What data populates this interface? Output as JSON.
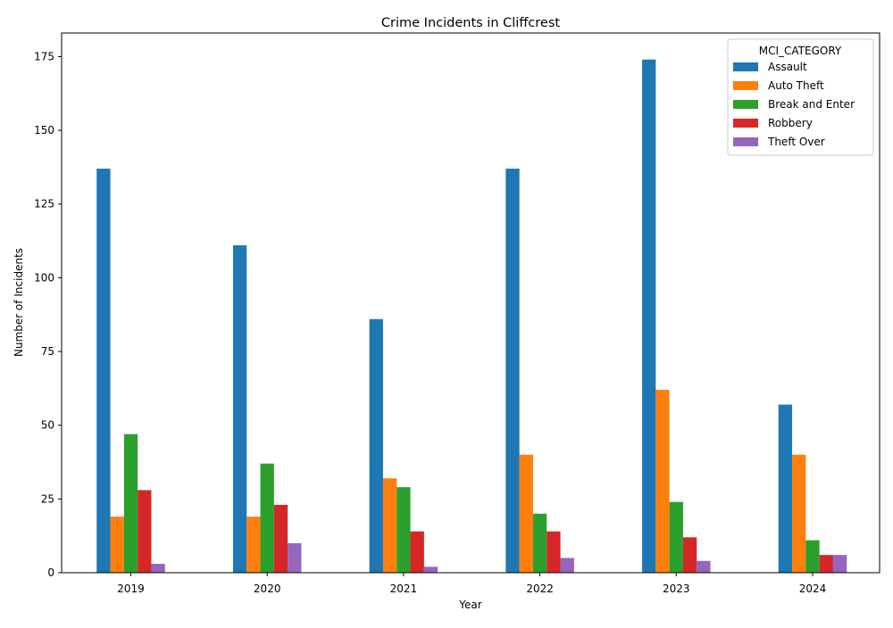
{
  "chart_data": {
    "type": "bar",
    "title": "Crime Incidents in Cliffcrest",
    "xlabel": "Year",
    "ylabel": "Number of Incidents",
    "categories": [
      "2019",
      "2020",
      "2021",
      "2022",
      "2023",
      "2024"
    ],
    "ylim": [
      0,
      183
    ],
    "yticks": [
      0,
      25,
      50,
      75,
      100,
      125,
      150,
      175
    ],
    "grid": false,
    "legend": {
      "title": "MCI_CATEGORY",
      "placement": "top-right"
    },
    "series": [
      {
        "name": "Assault",
        "color": "#1f77b4",
        "values": [
          137,
          111,
          86,
          137,
          174,
          57
        ]
      },
      {
        "name": "Auto Theft",
        "color": "#ff7f0e",
        "values": [
          19,
          19,
          32,
          40,
          62,
          40
        ]
      },
      {
        "name": "Break and Enter",
        "color": "#2ca02c",
        "values": [
          47,
          37,
          29,
          20,
          24,
          11
        ]
      },
      {
        "name": "Robbery",
        "color": "#d62728",
        "values": [
          28,
          23,
          14,
          14,
          12,
          6
        ]
      },
      {
        "name": "Theft Over",
        "color": "#9467bd",
        "values": [
          3,
          10,
          2,
          5,
          4,
          6
        ]
      }
    ]
  }
}
